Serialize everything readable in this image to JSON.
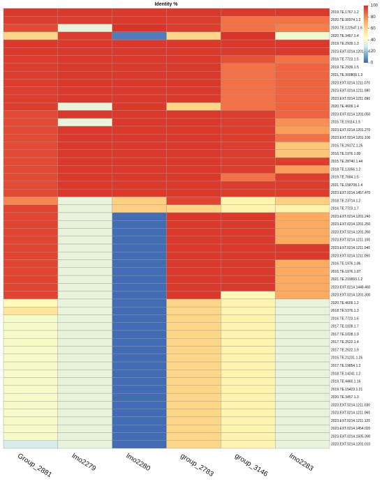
{
  "chart_data": {
    "type": "heatmap",
    "title": "Identity %",
    "columns": [
      "Group_2881",
      "lmo2279",
      "lmo2280",
      "group_2783",
      "group_3146",
      "lmo2283"
    ],
    "rows": [
      "2019.TE.1767.1.2",
      "2020.TE.90974.1.2",
      "2020.TE.12254T.1.6",
      "2020.TE.3457.1.4",
      "2019.TE.2939.1.3",
      "2023.EXT.0214.1201.310",
      "2016.TE.7723.1.5",
      "2019.TE.2939.1.5",
      "2021.TE.300808.1.3",
      "2023.EXT.0214.1211.070",
      "2023.EXT.0214.1211.080",
      "2023.EXT.0214.1211.090",
      "2020.TE.4609.1.4",
      "2023.EXT.0214.1201.050",
      "2015.TE.19114.1.5",
      "2023.EXT.0214.1201.270",
      "2023.EXT.0214.1201.100",
      "2015.TE.2917Z.1.25",
      "2016.TE.1976.1.80",
      "2015.TE.28740.1.44",
      "2018.TE.13356.1.2",
      "2019.TE.7684.1.5",
      "2021.TE.158708.1.4",
      "2023.EXT.0214.1457.470",
      "2018.TE.23714.1.2",
      "2016.TE.7723.1.7",
      "2023.EXT.0214.1201.240",
      "2023.EXT.0214.1201.250",
      "2023.EXT.0214.1201.260",
      "2023.EXT.0214.1211.100",
      "2023.EXT.0214.1211.040",
      "2023.EXT.0214.1211.050",
      "2016.TE.1976.1.86",
      "2016.TE.1976.1.87",
      "2021.TE.219993.1.2",
      "2023.EXT.0214.1448.460",
      "2023.EXT.0214.1201.300",
      "2020.TE.4609.1.2",
      "2018.TE.5376.1.3",
      "2016.TE.7723.1.6",
      "2017.TE.1028.1.7",
      "2017.TE.1028.1.9",
      "2017.TE.2522.1.4",
      "2017.TE.2522.1.9",
      "2015.TE.21231.1.26",
      "2017.TE.19854.1.2",
      "2018.TE.14241.1.2",
      "2019.TE.4460.1.16",
      "2019.TE.15423.1.21",
      "2020.TE.3457.1.3",
      "2023.EXT.0214.1211.030",
      "2023.EXT.0214.1211.060",
      "2023.EXT.0214.1211.120",
      "2023.EXT.0214.1454.020",
      "2023.EXT.0214.1505.390",
      "2023.EXT.0214.1201.010"
    ],
    "values": [
      [
        98,
        98,
        98,
        98,
        98,
        98
      ],
      [
        97,
        97,
        98,
        97,
        85,
        85
      ],
      [
        94,
        35,
        99,
        97,
        85,
        82
      ],
      [
        60,
        97,
        5,
        60,
        99,
        38
      ],
      [
        98,
        98,
        98,
        98,
        98,
        98
      ],
      [
        98,
        98,
        98,
        98,
        98,
        98
      ],
      [
        97,
        98,
        98,
        98,
        92,
        85
      ],
      [
        97,
        98,
        98,
        98,
        85,
        88
      ],
      [
        97,
        98,
        98,
        98,
        85,
        88
      ],
      [
        97,
        98,
        98,
        98,
        85,
        88
      ],
      [
        97,
        98,
        98,
        98,
        85,
        88
      ],
      [
        97,
        98,
        98,
        98,
        85,
        88
      ],
      [
        97,
        35,
        98,
        60,
        85,
        88
      ],
      [
        94,
        98,
        98,
        98,
        97,
        88
      ],
      [
        94,
        35,
        98,
        98,
        97,
        78
      ],
      [
        94,
        98,
        98,
        98,
        97,
        75
      ],
      [
        94,
        98,
        98,
        98,
        97,
        85
      ],
      [
        94,
        98,
        98,
        98,
        97,
        65
      ],
      [
        94,
        98,
        98,
        98,
        97,
        65
      ],
      [
        94,
        98,
        98,
        98,
        97,
        97
      ],
      [
        94,
        98,
        98,
        98,
        97,
        75
      ],
      [
        94,
        98,
        98,
        98,
        85,
        97
      ],
      [
        94,
        98,
        98,
        98,
        97,
        97
      ],
      [
        94,
        98,
        98,
        98,
        97,
        97
      ],
      [
        80,
        35,
        62,
        95,
        48,
        62
      ],
      [
        95,
        35,
        62,
        60,
        48,
        48
      ],
      [
        95,
        35,
        2,
        98,
        98,
        72
      ],
      [
        95,
        35,
        2,
        98,
        98,
        72
      ],
      [
        95,
        35,
        2,
        98,
        98,
        72
      ],
      [
        95,
        35,
        2,
        98,
        98,
        72
      ],
      [
        95,
        35,
        2,
        98,
        98,
        98
      ],
      [
        95,
        35,
        2,
        98,
        98,
        98
      ],
      [
        95,
        35,
        2,
        98,
        98,
        72
      ],
      [
        95,
        35,
        2,
        98,
        98,
        72
      ],
      [
        95,
        35,
        2,
        98,
        98,
        72
      ],
      [
        95,
        35,
        2,
        98,
        98,
        72
      ],
      [
        95,
        35,
        2,
        98,
        45,
        72
      ],
      [
        45,
        35,
        2,
        60,
        48,
        35
      ],
      [
        55,
        35,
        2,
        60,
        48,
        35
      ],
      [
        40,
        35,
        2,
        60,
        48,
        35
      ],
      [
        40,
        35,
        2,
        60,
        48,
        35
      ],
      [
        40,
        35,
        2,
        60,
        48,
        35
      ],
      [
        40,
        35,
        2,
        60,
        48,
        35
      ],
      [
        40,
        35,
        2,
        60,
        48,
        35
      ],
      [
        40,
        35,
        2,
        60,
        48,
        35
      ],
      [
        40,
        35,
        2,
        60,
        48,
        35
      ],
      [
        40,
        35,
        2,
        60,
        48,
        35
      ],
      [
        40,
        35,
        2,
        60,
        48,
        35
      ],
      [
        40,
        35,
        2,
        60,
        48,
        35
      ],
      [
        40,
        35,
        2,
        60,
        48,
        35
      ],
      [
        40,
        35,
        2,
        60,
        48,
        35
      ],
      [
        40,
        35,
        2,
        60,
        48,
        35
      ],
      [
        40,
        35,
        2,
        60,
        48,
        35
      ],
      [
        40,
        35,
        2,
        60,
        48,
        35
      ],
      [
        40,
        35,
        2,
        60,
        48,
        35
      ],
      [
        30,
        35,
        2,
        60,
        48,
        35
      ]
    ],
    "colorscale": [
      "#3a62b0",
      "#74add1",
      "#d3eaf2",
      "#ffffbf",
      "#fee090",
      "#fdae61",
      "#f46d43",
      "#d73027"
    ],
    "clim": [
      0,
      100
    ],
    "cticks": [
      0,
      20,
      40,
      60,
      80,
      100
    ]
  }
}
